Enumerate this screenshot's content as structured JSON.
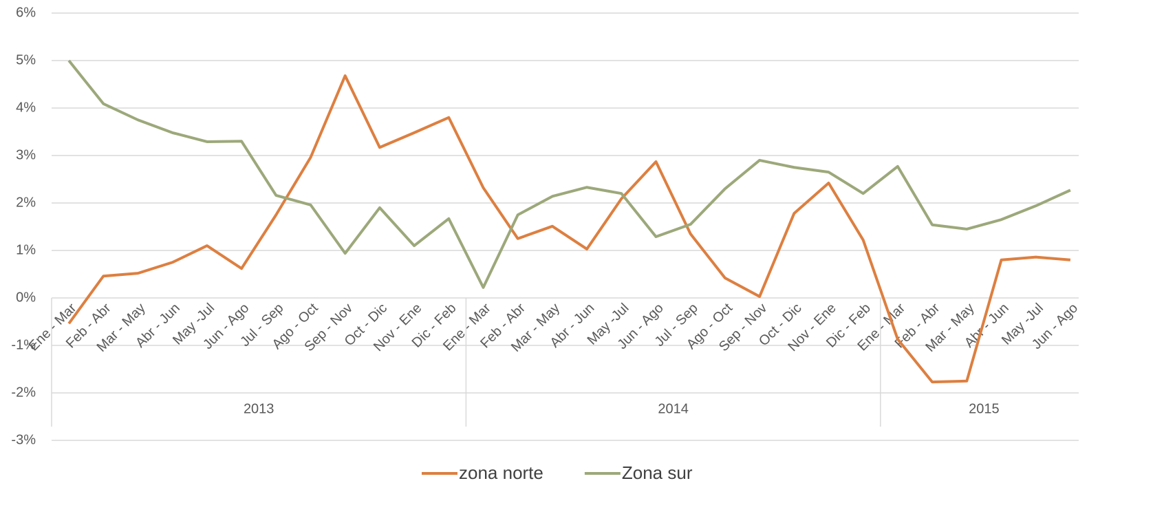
{
  "chart_data": {
    "type": "line",
    "category_groups": [
      {
        "label": "2013",
        "categories": [
          "Ene - Mar",
          "Feb - Abr",
          "Mar - May",
          "Abr - Jun",
          "May -Jul",
          "Jun - Ago",
          "Jul - Sep",
          "Ago - Oct",
          "Sep - Nov",
          "Oct - Dic",
          "Nov - Ene",
          "Dic - Feb"
        ]
      },
      {
        "label": "2014",
        "categories": [
          "Ene - Mar",
          "Feb - Abr",
          "Mar - May",
          "Abr - Jun",
          "May -Jul",
          "Jun - Ago",
          "Jul - Sep",
          "Ago - Oct",
          "Sep - Nov",
          "Oct - Dic",
          "Nov - Ene",
          "Dic - Feb"
        ]
      },
      {
        "label": "2015",
        "categories": [
          "Ene - Mar",
          "Feb - Abr",
          "Mar - May",
          "Abr - Jun",
          "May -Jul",
          "Jun - Ago"
        ]
      }
    ],
    "series": [
      {
        "name": "zona norte",
        "color": "#dd7f40",
        "values": [
          -0.54,
          0.46,
          0.52,
          0.75,
          1.1,
          0.62,
          1.75,
          2.96,
          4.68,
          3.17,
          3.48,
          3.8,
          2.32,
          1.25,
          1.51,
          1.03,
          2.09,
          2.87,
          1.35,
          0.42,
          0.03,
          1.78,
          2.42,
          1.22,
          -0.87,
          -1.77,
          -1.75,
          0.8,
          0.86,
          0.8
        ]
      },
      {
        "name": "Zona sur",
        "color": "#9ca87a",
        "values": [
          5.0,
          4.09,
          3.75,
          3.48,
          3.29,
          3.3,
          2.16,
          1.96,
          0.94,
          1.9,
          1.1,
          1.67,
          0.22,
          1.75,
          2.14,
          2.33,
          2.2,
          1.29,
          1.55,
          2.3,
          2.9,
          2.75,
          2.65,
          2.2,
          2.77,
          1.54,
          1.45,
          1.65,
          1.94,
          2.27
        ]
      }
    ],
    "ylim": [
      -3,
      6
    ],
    "yticks": [
      {
        "value": -3,
        "label": "-3%"
      },
      {
        "value": -2,
        "label": "-2%"
      },
      {
        "value": -1,
        "label": "-1%"
      },
      {
        "value": 0,
        "label": "0%"
      },
      {
        "value": 1,
        "label": "1%"
      },
      {
        "value": 2,
        "label": "2%"
      },
      {
        "value": 3,
        "label": "3%"
      },
      {
        "value": 4,
        "label": "4%"
      },
      {
        "value": 5,
        "label": "5%"
      },
      {
        "value": 6,
        "label": "6%"
      }
    ],
    "grid": true,
    "legend": "bottom"
  }
}
